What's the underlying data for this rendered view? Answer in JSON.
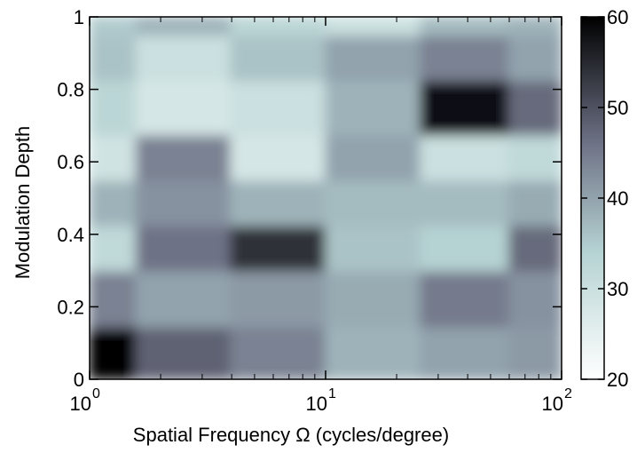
{
  "chart_data": {
    "type": "heatmap",
    "title": "",
    "xlabel": "Spatial Frequency Ω  (cycles/degree)",
    "ylabel": "Modulation Depth",
    "x_scale": "log",
    "xlim": [
      1,
      100
    ],
    "ylim": [
      0,
      1
    ],
    "x_ticks": [
      {
        "base": "10",
        "exp": "0"
      },
      {
        "base": "10",
        "exp": "1"
      },
      {
        "base": "10",
        "exp": "2"
      }
    ],
    "y_ticks": [
      "0",
      "0.2",
      "0.4",
      "0.6",
      "0.8",
      "1"
    ],
    "x": [
      1,
      2.5,
      6.3,
      16,
      40,
      90
    ],
    "y": [
      0.04,
      0.25,
      0.35,
      0.5,
      0.6,
      0.75,
      0.9,
      1.0
    ],
    "z": [
      [
        60,
        48,
        44,
        38,
        40,
        41
      ],
      [
        44,
        40,
        41,
        39,
        45,
        42
      ],
      [
        32,
        46,
        54,
        36,
        34,
        47
      ],
      [
        38,
        42,
        38,
        37,
        37,
        39
      ],
      [
        29,
        44,
        28,
        40,
        30,
        32
      ],
      [
        33,
        28,
        30,
        38,
        58,
        47
      ],
      [
        36,
        30,
        36,
        40,
        44,
        40
      ],
      [
        35,
        38,
        33,
        30,
        37,
        38
      ]
    ],
    "colorbar": {
      "range": [
        20,
        60
      ],
      "ticks": [
        "20",
        "30",
        "40",
        "50",
        "60"
      ],
      "colormap": "bone",
      "colors": [
        "#ffffff",
        "#b6d3d3",
        "#575470",
        "#000000"
      ]
    }
  }
}
